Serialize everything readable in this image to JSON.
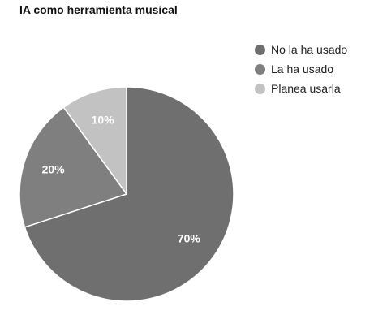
{
  "chart_data": {
    "type": "pie",
    "title": "IA como herramienta musical",
    "slices": [
      {
        "label": "No la ha usado",
        "value": 70,
        "value_label": "70%",
        "color": "#6f6f6f"
      },
      {
        "label": "La ha usado",
        "value": 20,
        "value_label": "20%",
        "color": "#7f7f7f"
      },
      {
        "label": "Planea usarla",
        "value": 10,
        "value_label": "10%",
        "color": "#c2c2c2"
      }
    ],
    "legend_position": "right",
    "start_angle": "top, clockwise"
  }
}
